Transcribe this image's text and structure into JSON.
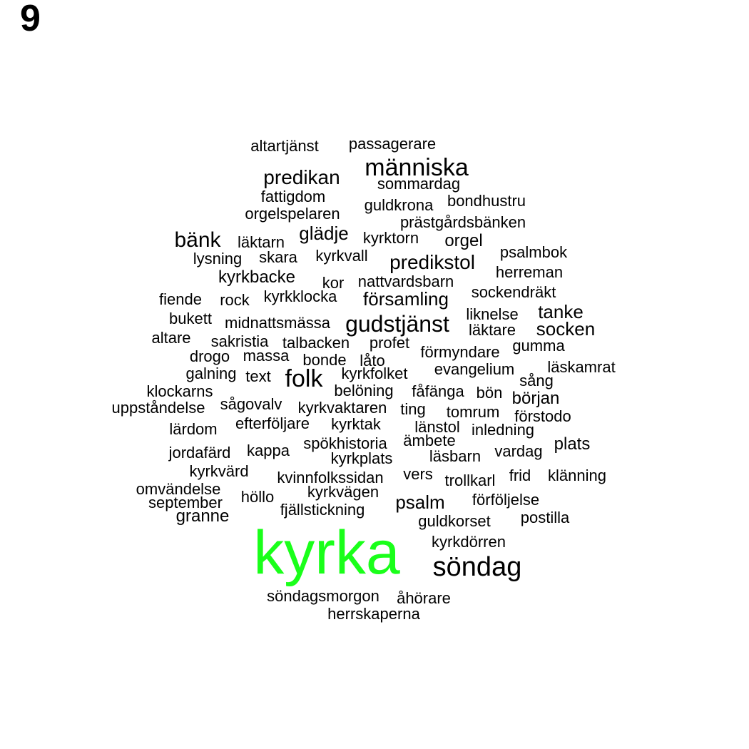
{
  "panel_label": "9",
  "highlight_color": "#1aff1a",
  "text_color": "#000000",
  "words": [
    {
      "text": "altartjänst",
      "highlight": false
    },
    {
      "text": "passagerare",
      "highlight": false
    },
    {
      "text": "människa",
      "highlight": false
    },
    {
      "text": "predikan",
      "highlight": false
    },
    {
      "text": "sommardag",
      "highlight": false
    },
    {
      "text": "fattigdom",
      "highlight": false
    },
    {
      "text": "bondhustru",
      "highlight": false
    },
    {
      "text": "guldkrona",
      "highlight": false
    },
    {
      "text": "orgelspelaren",
      "highlight": false
    },
    {
      "text": "prästgårdsbänken",
      "highlight": false
    },
    {
      "text": "bänk",
      "highlight": false
    },
    {
      "text": "läktarn",
      "highlight": false
    },
    {
      "text": "glädje",
      "highlight": false
    },
    {
      "text": "kyrktorn",
      "highlight": false
    },
    {
      "text": "orgel",
      "highlight": false
    },
    {
      "text": "psalmbok",
      "highlight": false
    },
    {
      "text": "lysning",
      "highlight": false
    },
    {
      "text": "skara",
      "highlight": false
    },
    {
      "text": "kyrkvall",
      "highlight": false
    },
    {
      "text": "predikstol",
      "highlight": false
    },
    {
      "text": "herreman",
      "highlight": false
    },
    {
      "text": "kyrkbacke",
      "highlight": false
    },
    {
      "text": "kor",
      "highlight": false
    },
    {
      "text": "nattvardsbarn",
      "highlight": false
    },
    {
      "text": "sockendräkt",
      "highlight": false
    },
    {
      "text": "fiende",
      "highlight": false
    },
    {
      "text": "rock",
      "highlight": false
    },
    {
      "text": "kyrkklocka",
      "highlight": false
    },
    {
      "text": "församling",
      "highlight": false
    },
    {
      "text": "tanke",
      "highlight": false
    },
    {
      "text": "liknelse",
      "highlight": false
    },
    {
      "text": "bukett",
      "highlight": false
    },
    {
      "text": "midnattsmässa",
      "highlight": false
    },
    {
      "text": "gudstjänst",
      "highlight": false
    },
    {
      "text": "läktare",
      "highlight": false
    },
    {
      "text": "socken",
      "highlight": false
    },
    {
      "text": "altare",
      "highlight": false
    },
    {
      "text": "sakristia",
      "highlight": false
    },
    {
      "text": "talbacken",
      "highlight": false
    },
    {
      "text": "profet",
      "highlight": false
    },
    {
      "text": "gumma",
      "highlight": false
    },
    {
      "text": "drogo",
      "highlight": false
    },
    {
      "text": "massa",
      "highlight": false
    },
    {
      "text": "bonde",
      "highlight": false
    },
    {
      "text": "låto",
      "highlight": false
    },
    {
      "text": "förmyndare",
      "highlight": false
    },
    {
      "text": "läskamrat",
      "highlight": false
    },
    {
      "text": "galning",
      "highlight": false
    },
    {
      "text": "text",
      "highlight": false
    },
    {
      "text": "folk",
      "highlight": false
    },
    {
      "text": "kyrkfolket",
      "highlight": false
    },
    {
      "text": "evangelium",
      "highlight": false
    },
    {
      "text": "sång",
      "highlight": false
    },
    {
      "text": "klockarns",
      "highlight": false
    },
    {
      "text": "belöning",
      "highlight": false
    },
    {
      "text": "fåfänga",
      "highlight": false
    },
    {
      "text": "bön",
      "highlight": false
    },
    {
      "text": "början",
      "highlight": false
    },
    {
      "text": "uppståndelse",
      "highlight": false
    },
    {
      "text": "sågovalv",
      "highlight": false
    },
    {
      "text": "kyrkvaktaren",
      "highlight": false
    },
    {
      "text": "ting",
      "highlight": false
    },
    {
      "text": "tomrum",
      "highlight": false
    },
    {
      "text": "förstodo",
      "highlight": false
    },
    {
      "text": "lärdom",
      "highlight": false
    },
    {
      "text": "efterföljare",
      "highlight": false
    },
    {
      "text": "kyrktak",
      "highlight": false
    },
    {
      "text": "länstol",
      "highlight": false
    },
    {
      "text": "inledning",
      "highlight": false
    },
    {
      "text": "jordafärd",
      "highlight": false
    },
    {
      "text": "kappa",
      "highlight": false
    },
    {
      "text": "spökhistoria",
      "highlight": false
    },
    {
      "text": "ämbete",
      "highlight": false
    },
    {
      "text": "plats",
      "highlight": false
    },
    {
      "text": "kyrkplats",
      "highlight": false
    },
    {
      "text": "läsbarn",
      "highlight": false
    },
    {
      "text": "vardag",
      "highlight": false
    },
    {
      "text": "kyrkvärd",
      "highlight": false
    },
    {
      "text": "kvinnfolkssidan",
      "highlight": false
    },
    {
      "text": "vers",
      "highlight": false
    },
    {
      "text": "frid",
      "highlight": false
    },
    {
      "text": "klänning",
      "highlight": false
    },
    {
      "text": "trollkarl",
      "highlight": false
    },
    {
      "text": "omvändelse",
      "highlight": false
    },
    {
      "text": "kyrkvägen",
      "highlight": false
    },
    {
      "text": "september",
      "highlight": false
    },
    {
      "text": "höllo",
      "highlight": false
    },
    {
      "text": "psalm",
      "highlight": false
    },
    {
      "text": "förföljelse",
      "highlight": false
    },
    {
      "text": "granne",
      "highlight": false
    },
    {
      "text": "fjällstickning",
      "highlight": false
    },
    {
      "text": "guldkorset",
      "highlight": false
    },
    {
      "text": "postilla",
      "highlight": false
    },
    {
      "text": "kyrkdörren",
      "highlight": false
    },
    {
      "text": "kyrka",
      "highlight": true
    },
    {
      "text": "söndag",
      "highlight": false
    },
    {
      "text": "söndagsmorgon",
      "highlight": false
    },
    {
      "text": "åhörare",
      "highlight": false
    },
    {
      "text": "herrskaperna",
      "highlight": false
    }
  ]
}
